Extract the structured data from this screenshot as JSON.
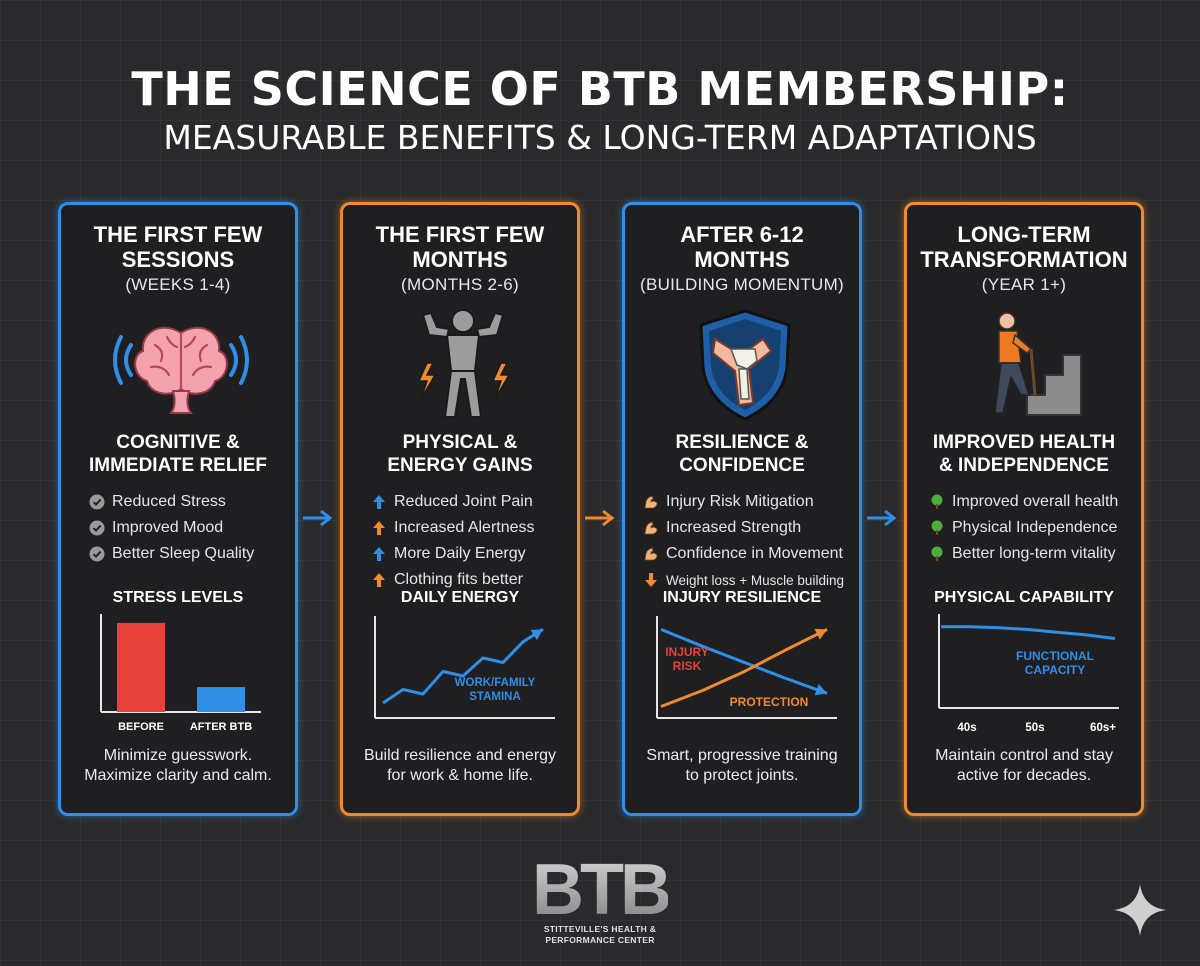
{
  "header": {
    "title": "THE SCIENCE OF BTB MEMBERSHIP:",
    "subtitle": "MEASURABLE BENEFITS & LONG-TERM ADAPTATIONS"
  },
  "colors": {
    "blue": "#2f8ee6",
    "orange": "#ef8a2e",
    "red": "#e8403a",
    "background": "#2a2a2c"
  },
  "cards": [
    {
      "title_lines": [
        "THE FIRST FEW",
        "SESSIONS"
      ],
      "subtitle": "(WEEKS 1-4)",
      "icon": "brain-icon",
      "section_lines": [
        "COGNITIVE &",
        "IMMEDIATE RELIEF"
      ],
      "benefits": [
        {
          "icon": "check-circle-icon",
          "text": "Reduced Stress"
        },
        {
          "icon": "check-circle-icon",
          "text": "Improved Mood"
        },
        {
          "icon": "check-circle-icon",
          "text": "Better Sleep Quality"
        }
      ],
      "chart_title": "STRESS LEVELS",
      "footer_lines": [
        "Minimize guesswork.",
        "Maximize clarity and calm."
      ]
    },
    {
      "title_lines": [
        "THE FIRST FEW",
        "MONTHS"
      ],
      "subtitle": "(MONTHS 2-6)",
      "icon": "flexing-figure-icon",
      "section_lines": [
        "PHYSICAL &",
        "ENERGY GAINS"
      ],
      "benefits": [
        {
          "icon": "arrow-up-blue-icon",
          "text": "Reduced Joint Pain"
        },
        {
          "icon": "arrow-up-orange-icon",
          "text": "Increased Alertness"
        },
        {
          "icon": "arrow-up-blue-icon",
          "text": "More Daily Energy"
        },
        {
          "icon": "arrow-up-orange-icon",
          "text": "Clothing fits better"
        }
      ],
      "chart_title": "DAILY ENERGY",
      "footer_lines": [
        "Build resilience and energy",
        "for work & home life."
      ]
    },
    {
      "title_lines": [
        "AFTER 6-12",
        "MONTHS"
      ],
      "subtitle": "(BUILDING MOMENTUM)",
      "icon": "knee-shield-icon",
      "section_lines": [
        "RESILIENCE &",
        "CONFIDENCE"
      ],
      "benefits": [
        {
          "icon": "flexed-arm-icon",
          "text": "Injury Risk Mitigation"
        },
        {
          "icon": "flexed-arm-icon",
          "text": "Increased Strength"
        },
        {
          "icon": "flexed-arm-icon",
          "text": "Confidence in Movement"
        },
        {
          "icon": "arrow-down-orange-icon",
          "text": "Weight loss + Muscle building"
        }
      ],
      "chart_title": "INJURY RESILIENCE",
      "footer_lines": [
        "Smart, progressive training",
        "to protect joints."
      ]
    },
    {
      "title_lines": [
        "LONG-TERM",
        "TRANSFORMATION"
      ],
      "subtitle": "(YEAR 1+)",
      "icon": "senior-climbing-stairs-icon",
      "section_lines": [
        "IMPROVED HEALTH",
        "& INDEPENDENCE"
      ],
      "benefits": [
        {
          "icon": "tree-icon",
          "text": "Improved overall health"
        },
        {
          "icon": "tree-icon",
          "text": "Physical Independence"
        },
        {
          "icon": "tree-icon",
          "text": "Better long-term vitality"
        }
      ],
      "chart_title": "PHYSICAL CAPABILITY",
      "footer_lines": [
        "Maintain control and stay",
        "active for decades."
      ]
    }
  ],
  "chart_data": [
    {
      "type": "bar",
      "title": "STRESS LEVELS",
      "categories": [
        "BEFORE",
        "AFTER BTB"
      ],
      "values": [
        100,
        28
      ],
      "colors": [
        "#e8403a",
        "#2f8ee6"
      ],
      "ylim": [
        0,
        110
      ],
      "grid": false
    },
    {
      "type": "line",
      "title": "DAILY ENERGY",
      "series": [
        {
          "name": "WORK/FAMILY STAMINA",
          "x": [
            0,
            1,
            2,
            3,
            4,
            5,
            6,
            7,
            8
          ],
          "values": [
            10,
            25,
            20,
            45,
            40,
            60,
            55,
            78,
            92
          ]
        }
      ],
      "ylim": [
        0,
        100
      ],
      "arrow_end": true,
      "grid": false
    },
    {
      "type": "line",
      "title": "INJURY RESILIENCE",
      "series": [
        {
          "name": "INJURY RISK",
          "color": "#2f8ee6",
          "x": [
            0,
            1,
            2,
            3,
            4
          ],
          "values": [
            90,
            72,
            55,
            38,
            22
          ]
        },
        {
          "name": "PROTECTION",
          "color": "#ef8a2e",
          "x": [
            0,
            1,
            2,
            3,
            4
          ],
          "values": [
            8,
            25,
            45,
            68,
            90
          ]
        }
      ],
      "ylim": [
        0,
        100
      ],
      "arrow_end": true,
      "grid": false
    },
    {
      "type": "line",
      "title": "PHYSICAL CAPABILITY",
      "categories": [
        "40s",
        "50s",
        "60s+"
      ],
      "series": [
        {
          "name": "FUNCTIONAL CAPACITY",
          "color": "#2f8ee6",
          "x": [
            0,
            1,
            2,
            3,
            4,
            5,
            6
          ],
          "values": [
            88,
            88,
            87,
            85,
            82,
            79,
            75
          ]
        }
      ],
      "ylim": [
        0,
        100
      ],
      "grid": false
    }
  ],
  "logo": {
    "mark": "BTB",
    "tagline_lines": [
      "STITTEVILLE'S HEALTH &",
      "PERFORMANCE CENTER"
    ]
  }
}
